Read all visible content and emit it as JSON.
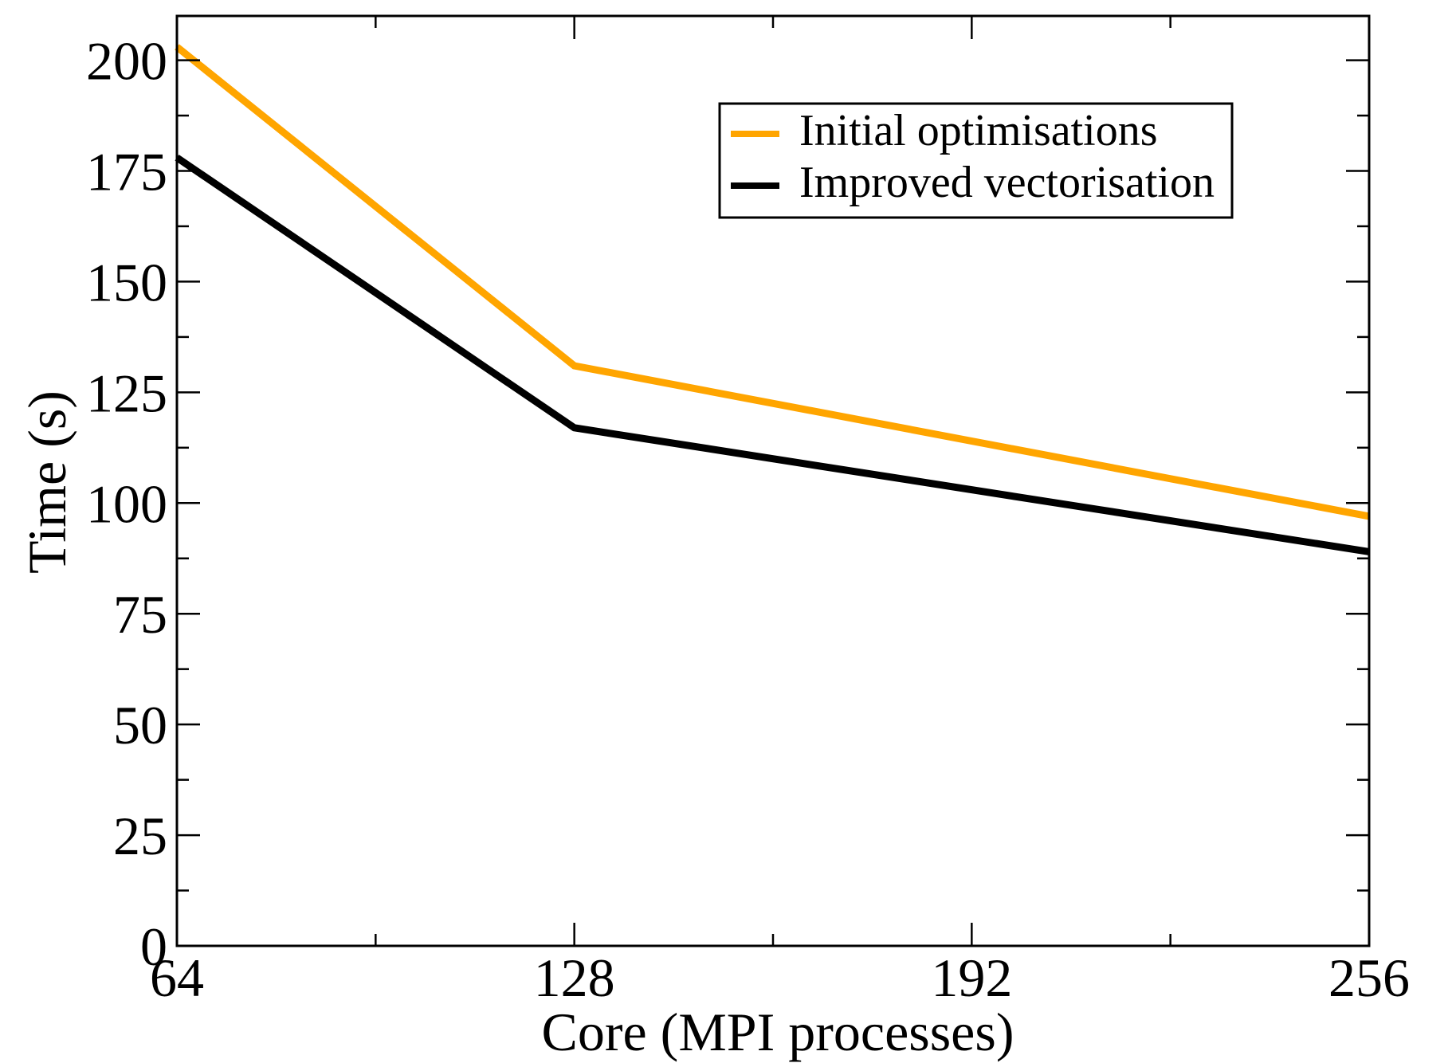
{
  "chart_data": {
    "type": "line",
    "title": "",
    "xlabel": "Core (MPI processes)",
    "ylabel": "Time (s)",
    "x": [
      64,
      128,
      256
    ],
    "xlim": [
      64,
      256
    ],
    "ylim": [
      0,
      210
    ],
    "xticks": [
      64,
      128,
      192,
      256
    ],
    "xtick_labels": [
      "64",
      "128",
      "192",
      "256"
    ],
    "xminor_step": 32,
    "yticks": [
      0,
      25,
      50,
      75,
      100,
      125,
      150,
      175,
      200
    ],
    "ytick_labels": [
      "0",
      "25",
      "50",
      "75",
      "100",
      "125",
      "150",
      "175",
      "200"
    ],
    "yminor_step": 12.5,
    "grid": false,
    "legend_position": "top-right",
    "series": [
      {
        "name": "Initial optimisations",
        "color": "#FFA500",
        "values": [
          203,
          131,
          97
        ]
      },
      {
        "name": "Improved vectorisation",
        "color": "#000000",
        "values": [
          178,
          117,
          89
        ]
      }
    ]
  }
}
